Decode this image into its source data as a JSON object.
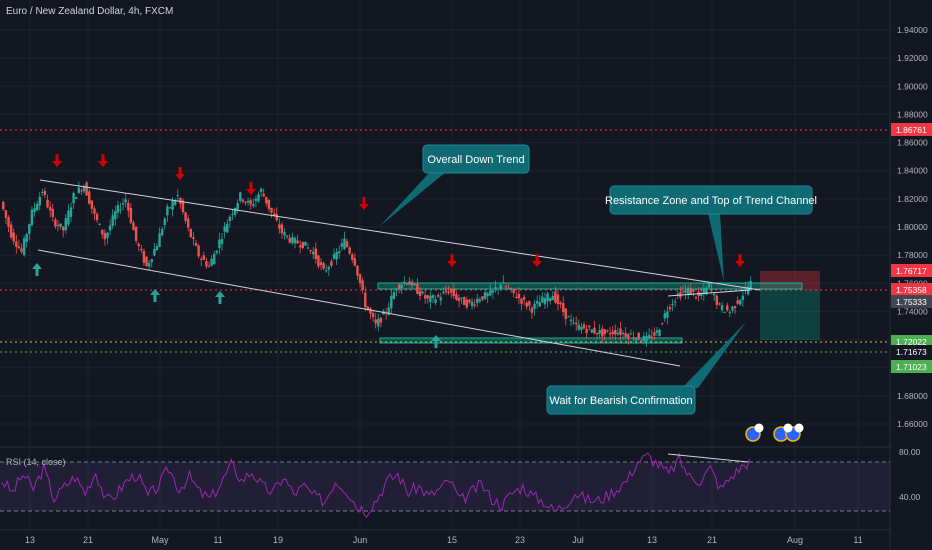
{
  "chart_data": {
    "type": "line",
    "title": "Euro / New Zealand Dollar, 4h, FXCM",
    "price_axis_ticks": [
      "1.94000",
      "1.92000",
      "1.90000",
      "1.88000",
      "1.86000",
      "1.84000",
      "1.82000",
      "1.80000",
      "1.78000",
      "1.76000",
      "1.74000",
      "1.72000",
      "1.70000",
      "1.68000",
      "1.66000"
    ],
    "price_labels": [
      {
        "text": "1.86761",
        "value": 1.86761,
        "color": "#f23645"
      },
      {
        "text": "1.76717",
        "value": 1.76717,
        "color": "#f23645"
      },
      {
        "text": "1.75358",
        "value": 1.75358,
        "color": "#f23645"
      },
      {
        "text": "1.75333",
        "value": 1.75333,
        "color": "#434651"
      },
      {
        "text": "1.72022",
        "value": 1.72022,
        "color": "#4caf50"
      },
      {
        "text": "1.71673",
        "value": 1.71673,
        "color": "#131722"
      },
      {
        "text": "1.71023",
        "value": 1.71023,
        "color": "#4caf50"
      }
    ],
    "x_ticks": [
      "13",
      "21",
      "May",
      "11",
      "19",
      "Jun",
      "15",
      "23",
      "Jul",
      "13",
      "21",
      "Aug",
      "11"
    ],
    "annotations": [
      "Overall Down Trend",
      "Resistance Zone and Top of Trend Channel",
      "Wait for Bearish Confirmation"
    ],
    "rsi": {
      "label": "RSI (14, close)",
      "ticks": [
        "80.00",
        "40.00"
      ],
      "levels": [
        70,
        30
      ]
    },
    "price_series": [
      1.818,
      1.795,
      1.782,
      1.81,
      1.826,
      1.805,
      1.798,
      1.822,
      1.83,
      1.808,
      1.792,
      1.81,
      1.82,
      1.79,
      1.772,
      1.788,
      1.812,
      1.822,
      1.798,
      1.78,
      1.772,
      1.79,
      1.808,
      1.822,
      1.815,
      1.826,
      1.81,
      1.796,
      1.79,
      1.788,
      1.782,
      1.768,
      1.778,
      1.79,
      1.775,
      1.745,
      1.73,
      1.74,
      1.758,
      1.762,
      1.755,
      1.748,
      1.75,
      1.755,
      1.748,
      1.745,
      1.75,
      1.752,
      1.76,
      1.754,
      1.748,
      1.742,
      1.748,
      1.752,
      1.74,
      1.73,
      1.728,
      1.726,
      1.724,
      1.726,
      1.724,
      1.722,
      1.72,
      1.725,
      1.742,
      1.752,
      1.755,
      1.75,
      1.758,
      1.743,
      1.74,
      1.75,
      1.76
    ],
    "rsi_series": [
      55,
      45,
      60,
      48,
      65,
      40,
      50,
      58,
      45,
      62,
      38,
      44,
      55,
      60,
      42,
      50,
      65,
      48,
      58,
      45,
      40,
      52,
      68,
      55,
      62,
      50,
      45,
      58,
      44,
      50,
      42,
      38,
      55,
      48,
      35,
      30,
      40,
      55,
      60,
      45,
      50,
      42,
      48,
      55,
      38,
      45,
      52,
      40,
      35,
      45,
      50,
      42,
      38,
      30,
      35,
      45,
      40,
      38,
      42,
      48,
      55,
      70,
      75,
      68,
      60,
      72,
      58,
      55,
      65,
      48,
      58,
      66,
      72
    ]
  }
}
